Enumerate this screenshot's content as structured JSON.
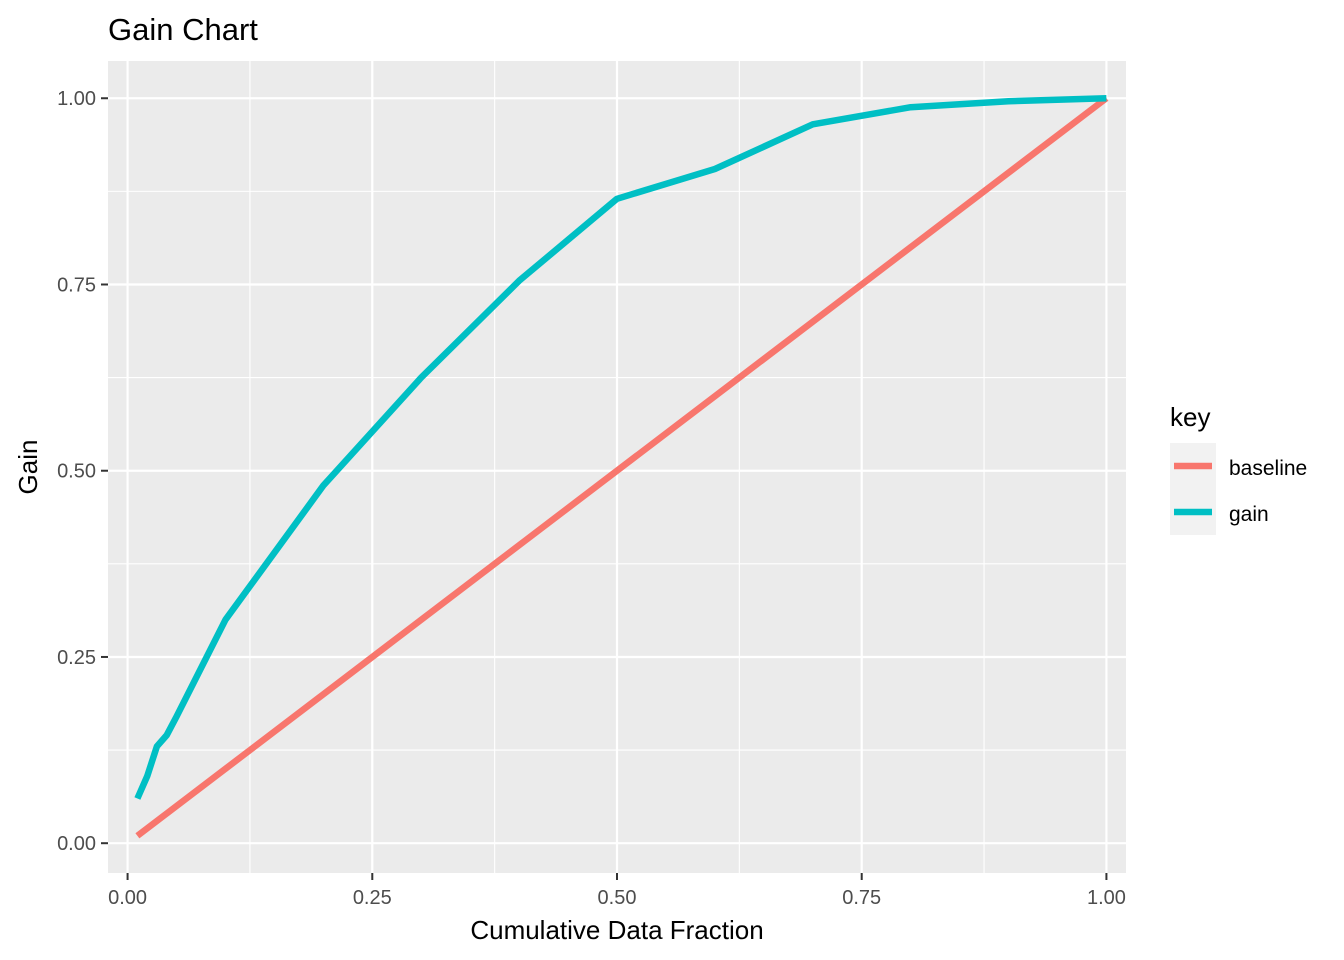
{
  "chart_data": {
    "type": "line",
    "title": "Gain Chart",
    "xlabel": "Cumulative Data Fraction",
    "ylabel": "Gain",
    "xlim": [
      -0.02,
      1.02
    ],
    "ylim": [
      -0.04,
      1.05
    ],
    "x_ticks": [
      {
        "value": 0,
        "label": "0.00"
      },
      {
        "value": 0.25,
        "label": "0.25"
      },
      {
        "value": 0.5,
        "label": "0.50"
      },
      {
        "value": 0.75,
        "label": "0.75"
      },
      {
        "value": 1,
        "label": "1.00"
      }
    ],
    "y_ticks": [
      {
        "value": 0,
        "label": "0.00"
      },
      {
        "value": 0.25,
        "label": "0.25"
      },
      {
        "value": 0.5,
        "label": "0.50"
      },
      {
        "value": 0.75,
        "label": "0.75"
      },
      {
        "value": 1,
        "label": "1.00"
      }
    ],
    "grid": true,
    "legend": {
      "title": "key",
      "position": "right",
      "entries": [
        "baseline",
        "gain"
      ]
    },
    "series": [
      {
        "name": "baseline",
        "color": "#F8766D",
        "x": [
          0.01,
          1.0
        ],
        "y": [
          0.01,
          1.0
        ]
      },
      {
        "name": "gain",
        "color": "#00BFC4",
        "x": [
          0.01,
          0.02,
          0.03,
          0.04,
          0.05,
          0.1,
          0.15,
          0.2,
          0.3,
          0.4,
          0.5,
          0.6,
          0.7,
          0.8,
          0.9,
          1.0
        ],
        "y": [
          0.06,
          0.09,
          0.13,
          0.145,
          0.17,
          0.3,
          0.39,
          0.48,
          0.625,
          0.755,
          0.865,
          0.905,
          0.965,
          0.988,
          0.996,
          1.0
        ]
      }
    ]
  }
}
